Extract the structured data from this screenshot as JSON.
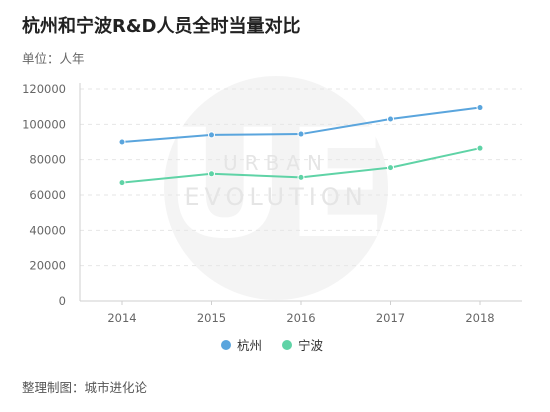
{
  "header": {
    "title": "杭州和宁波R&D人员全时当量对比",
    "unit": "单位：人年"
  },
  "footer": {
    "source": "整理制图：城市进化论"
  },
  "colors": {
    "hangzhou": "#5aa5dd",
    "ningbo": "#5fd3a6",
    "grid": "#e6e6e6",
    "axis": "#cfcfcf",
    "watermark": "#d6d6d6"
  },
  "watermark": {
    "brand": "UE",
    "text_top": "URBAN",
    "text_bottom": "EVOLUTION"
  },
  "chart_data": {
    "type": "line",
    "categories": [
      "2014",
      "2015",
      "2016",
      "2017",
      "2018"
    ],
    "ylim": [
      0,
      120000
    ],
    "yticks": [
      0,
      20000,
      40000,
      60000,
      80000,
      100000,
      120000
    ],
    "grid": true,
    "legend_position": "bottom",
    "series": [
      {
        "name": "杭州",
        "values": [
          90000,
          94000,
          94500,
          103000,
          109500
        ]
      },
      {
        "name": "宁波",
        "values": [
          67000,
          72000,
          70000,
          75500,
          86500
        ]
      }
    ]
  }
}
